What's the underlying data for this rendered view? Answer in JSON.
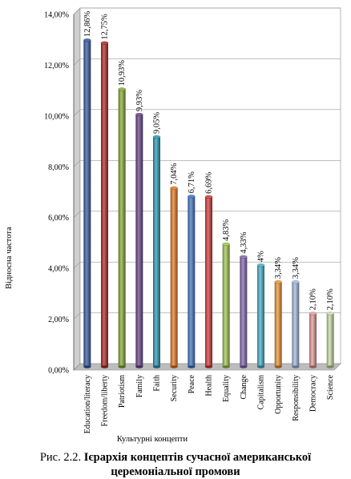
{
  "chart_data": {
    "type": "bar",
    "title": "",
    "xlabel": "Культурні концепти",
    "ylabel": "Відносна частота",
    "ylim": [
      0,
      14
    ],
    "yticks": [
      "0,00%",
      "2,00%",
      "4,00%",
      "6,00%",
      "8,00%",
      "10,00%",
      "12,00%",
      "14,00%"
    ],
    "ytick_values": [
      0,
      2,
      4,
      6,
      8,
      10,
      12,
      14
    ],
    "grid": true,
    "legend": "none",
    "categories": [
      "Education/literacy",
      "Freedom/liberty",
      "Patriotism",
      "Family",
      "Faith",
      "Security",
      "Peace",
      "Health",
      "Equality",
      "Change",
      "Capitalism",
      "Opportunity",
      "Responsibility",
      "Democracy",
      "Science"
    ],
    "values": [
      12.86,
      12.75,
      10.93,
      9.93,
      9.05,
      7.04,
      6.71,
      6.69,
      4.83,
      4.33,
      4,
      3.34,
      3.34,
      2.1,
      2.1
    ],
    "data_labels": [
      "12,86%",
      "12,75%",
      "10,93%",
      "9,93%",
      "9,05%",
      "7,04%",
      "6,71%",
      "6,69%",
      "4,83%",
      "4,33%",
      "4%",
      "3,34%",
      "3,34%",
      "2,10%",
      "2,10%"
    ],
    "colors": [
      "#3e5fa8",
      "#b7302d",
      "#8fb03c",
      "#6f4b92",
      "#2e9fba",
      "#e8812a",
      "#4a7cc8",
      "#d94040",
      "#a6cc55",
      "#8a6db4",
      "#4cb5d1",
      "#f39a3c",
      "#a9bfe3",
      "#e8a0a0",
      "#cfe0a8"
    ]
  },
  "caption": {
    "prefix": "Рис. 2.2.",
    "bold_line1": "Ієрархія концептів сучасної американської",
    "bold_line2": "церемоніальної промови"
  }
}
